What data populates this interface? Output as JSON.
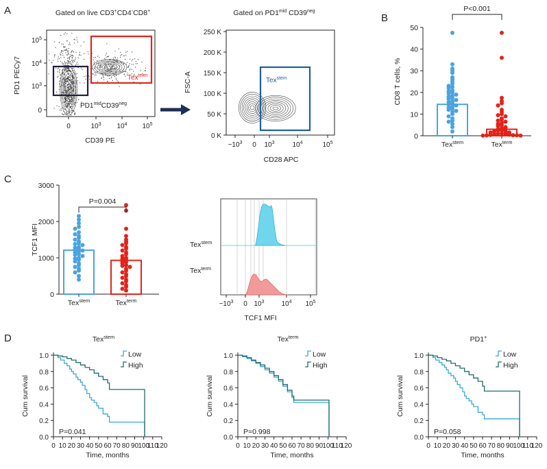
{
  "panel_letters": {
    "a": "A",
    "b": "B",
    "c": "C",
    "d": "D"
  },
  "colors": {
    "blue": "#4aa3df",
    "red": "#e2231a",
    "navy": "#1d2f54",
    "dark_box": "#231a3d",
    "histo_blue": "#6fd6ee",
    "histo_red": "#f19a9a",
    "km_low": "#38a7d6",
    "km_high": "#1f6b6b",
    "gate_blue": "#1f5fa0"
  },
  "chart_data": [
    {
      "id": "A1",
      "type": "scatter",
      "title_parts": [
        "Gated on live CD3",
        "+",
        "CD4",
        "-",
        "CD8",
        "+"
      ],
      "xlabel": "CD39 PE",
      "ylabel": "PD1 PECy7",
      "x_ticks": [
        {
          "label": "0",
          "sup": ""
        },
        {
          "label": "10",
          "sup": "3"
        },
        {
          "label": "10",
          "sup": "4"
        },
        {
          "label": "10",
          "sup": "5"
        }
      ],
      "y_ticks": [
        {
          "label": "0",
          "sup": ""
        },
        {
          "label": "10",
          "sup": "3"
        },
        {
          "label": "10",
          "sup": "4"
        },
        {
          "label": "10",
          "sup": "5"
        }
      ],
      "gate_tex_term_label": {
        "base": "Tex",
        "sup": "term"
      },
      "gate_pd1mid_label": {
        "p1": "PD1",
        "s1": "mid",
        "p2": "CD39",
        "s2": "neg"
      }
    },
    {
      "id": "A2",
      "type": "scatter",
      "title_parts": [
        "Gated on PD1",
        "mid",
        " CD39",
        "neg"
      ],
      "xlabel": "CD28 APC",
      "ylabel": "FSC-A",
      "y_ticks": [
        "0 K",
        "50 K",
        "100 K",
        "150 K",
        "200 K",
        "250 K"
      ],
      "x_ticks": [
        {
          "label": "−10",
          "sup": "3"
        },
        {
          "label": "0",
          "sup": ""
        },
        {
          "label": "10",
          "sup": "3"
        },
        {
          "label": "10",
          "sup": "4"
        },
        {
          "label": "10",
          "sup": "5"
        }
      ],
      "gate_label": {
        "base": "Tex",
        "sup": "stem"
      }
    },
    {
      "id": "B",
      "type": "bar",
      "ylabel": "CD8 T cells, %",
      "ylim": [
        0,
        50
      ],
      "y_ticks": [
        0,
        10,
        20,
        30,
        40,
        50
      ],
      "categories": [
        {
          "base": "Tex",
          "sup": "stem"
        },
        {
          "base": "Tex",
          "sup": "term"
        }
      ],
      "means": [
        14.5,
        3.0
      ],
      "significance": "P<0.001",
      "points": [
        [
          47.5,
          33,
          31,
          30,
          29,
          27,
          26,
          25,
          24,
          23,
          22.5,
          22,
          21,
          20.5,
          20,
          19.5,
          19,
          18.5,
          18,
          17.5,
          17,
          16.5,
          16,
          15.5,
          15,
          14.5,
          14,
          13.5,
          13,
          12.5,
          12,
          11.5,
          11,
          10,
          9,
          8,
          7,
          6.5,
          5.5,
          4,
          2
        ],
        [
          47.5,
          36,
          17.5,
          16,
          15,
          14,
          12,
          11,
          10,
          9.5,
          9,
          8,
          7.5,
          7,
          6.5,
          6,
          5.5,
          5,
          4.5,
          4,
          3.5,
          3,
          3,
          2.5,
          2.5,
          2,
          2,
          1.5,
          1.5,
          1,
          1,
          0.8,
          0.6,
          0.5,
          0.4,
          0.3,
          0.2,
          0.2,
          0.1,
          0.1
        ]
      ]
    },
    {
      "id": "C1",
      "type": "bar",
      "ylabel": "TCF1 MFI",
      "ylim": [
        0,
        3000
      ],
      "y_ticks": [
        0,
        1000,
        2000,
        3000
      ],
      "categories": [
        {
          "base": "Tex",
          "sup": "stem"
        },
        {
          "base": "Tex",
          "sup": "term"
        }
      ],
      "means": [
        1210,
        930
      ],
      "significance": "P=0.004",
      "points": [
        [
          2150,
          2050,
          1950,
          1850,
          1800,
          1700,
          1650,
          1600,
          1550,
          1500,
          1450,
          1400,
          1380,
          1350,
          1300,
          1280,
          1250,
          1220,
          1200,
          1180,
          1150,
          1100,
          1080,
          1050,
          1000,
          980,
          950,
          900,
          850,
          800,
          750,
          700,
          650,
          600,
          500,
          400
        ],
        [
          2450,
          2300,
          1800,
          1600,
          1500,
          1450,
          1400,
          1350,
          1300,
          1250,
          1200,
          1150,
          1100,
          1050,
          1000,
          980,
          950,
          900,
          880,
          850,
          800,
          780,
          750,
          700,
          650,
          600,
          550,
          500,
          450,
          400,
          350,
          300,
          250,
          200,
          150,
          100
        ]
      ]
    },
    {
      "id": "C2",
      "type": "area",
      "xlabel": "TCF1 MFI",
      "x_ticks": [
        {
          "label": "−10",
          "sup": "3"
        },
        {
          "label": "0",
          "sup": ""
        },
        {
          "label": "10",
          "sup": "3"
        },
        {
          "label": "10",
          "sup": "4"
        },
        {
          "label": "10",
          "sup": "5"
        }
      ],
      "series": [
        {
          "name": {
            "base": "Tex",
            "sup": "stem"
          }
        },
        {
          "name": {
            "base": "Tex",
            "sup": "term"
          }
        }
      ]
    },
    {
      "id": "D1",
      "type": "line",
      "title": {
        "base": "Tex",
        "sup": "stem"
      },
      "xlabel": "Time, months",
      "ylabel": "Cum survival",
      "xlim": [
        0,
        120
      ],
      "ylim": [
        0,
        1
      ],
      "x_ticks": [
        0,
        10,
        20,
        30,
        40,
        50,
        60,
        70,
        80,
        90,
        100,
        110,
        120
      ],
      "y_ticks": [
        "0.0",
        "0.2",
        "0.4",
        "0.6",
        "0.8",
        "1.0"
      ],
      "p_value": "P=0.041",
      "legend": [
        "Low",
        "High"
      ],
      "series": [
        {
          "name": "Low",
          "t": [
            0,
            5,
            8,
            12,
            15,
            18,
            20,
            22,
            25,
            27,
            30,
            32,
            35,
            37,
            40,
            42,
            45,
            48,
            50,
            55,
            60,
            62,
            100,
            101
          ],
          "s": [
            1.0,
            0.97,
            0.94,
            0.9,
            0.87,
            0.83,
            0.8,
            0.77,
            0.73,
            0.7,
            0.67,
            0.63,
            0.58,
            0.53,
            0.48,
            0.45,
            0.42,
            0.38,
            0.35,
            0.28,
            0.25,
            0.18,
            0.18,
            0.0
          ]
        },
        {
          "name": "High",
          "t": [
            0,
            5,
            10,
            15,
            20,
            25,
            30,
            35,
            40,
            45,
            50,
            55,
            60,
            62,
            100,
            101
          ],
          "s": [
            1.0,
            0.99,
            0.98,
            0.96,
            0.94,
            0.91,
            0.88,
            0.85,
            0.82,
            0.78,
            0.74,
            0.7,
            0.66,
            0.58,
            0.58,
            0.0
          ]
        }
      ]
    },
    {
      "id": "D2",
      "type": "line",
      "title": {
        "base": "Tex",
        "sup": "term"
      },
      "xlabel": "Time, months",
      "ylabel": "Cum survival",
      "xlim": [
        0,
        120
      ],
      "ylim": [
        0,
        1
      ],
      "x_ticks": [
        0,
        10,
        20,
        30,
        40,
        50,
        60,
        70,
        80,
        90,
        100,
        110,
        120
      ],
      "y_ticks": [
        "0.0",
        "0.2",
        "0.4",
        "0.6",
        "0.8",
        "1.0"
      ],
      "p_value": "P=0.998",
      "legend": [
        "Low",
        "High"
      ],
      "series": [
        {
          "name": "Low",
          "t": [
            0,
            5,
            10,
            15,
            20,
            25,
            30,
            35,
            40,
            45,
            50,
            55,
            60,
            62,
            100,
            101
          ],
          "s": [
            1.0,
            0.98,
            0.96,
            0.93,
            0.9,
            0.86,
            0.82,
            0.78,
            0.73,
            0.68,
            0.62,
            0.55,
            0.48,
            0.42,
            0.42,
            0.0
          ]
        },
        {
          "name": "High",
          "t": [
            0,
            5,
            10,
            15,
            20,
            25,
            30,
            35,
            40,
            45,
            50,
            55,
            60,
            62,
            100,
            101
          ],
          "s": [
            1.0,
            0.99,
            0.97,
            0.94,
            0.91,
            0.88,
            0.84,
            0.8,
            0.75,
            0.7,
            0.64,
            0.57,
            0.5,
            0.45,
            0.45,
            0.0
          ]
        }
      ]
    },
    {
      "id": "D3",
      "type": "line",
      "title": {
        "base": "PD1",
        "sup": "+"
      },
      "xlabel": "Time, months",
      "ylabel": "Cum survival",
      "xlim": [
        0,
        120
      ],
      "ylim": [
        0,
        1
      ],
      "x_ticks": [
        0,
        10,
        20,
        30,
        40,
        50,
        60,
        70,
        80,
        90,
        100,
        110,
        120
      ],
      "y_ticks": [
        "0.0",
        "0.2",
        "0.4",
        "0.6",
        "0.8",
        "1.0"
      ],
      "p_value": "P=0.058",
      "legend": [
        "Low",
        "High"
      ],
      "series": [
        {
          "name": "Low",
          "t": [
            0,
            5,
            8,
            12,
            15,
            18,
            20,
            22,
            25,
            28,
            30,
            32,
            35,
            38,
            40,
            42,
            45,
            48,
            50,
            55,
            60,
            62,
            100,
            101
          ],
          "s": [
            1.0,
            0.97,
            0.94,
            0.91,
            0.88,
            0.85,
            0.82,
            0.78,
            0.75,
            0.72,
            0.68,
            0.64,
            0.6,
            0.55,
            0.5,
            0.47,
            0.44,
            0.4,
            0.37,
            0.3,
            0.27,
            0.22,
            0.22,
            0.0
          ]
        },
        {
          "name": "High",
          "t": [
            0,
            5,
            10,
            15,
            20,
            25,
            30,
            35,
            40,
            45,
            50,
            55,
            60,
            62,
            100,
            101
          ],
          "s": [
            1.0,
            0.99,
            0.97,
            0.95,
            0.93,
            0.9,
            0.87,
            0.84,
            0.8,
            0.76,
            0.72,
            0.68,
            0.62,
            0.56,
            0.56,
            0.0
          ]
        }
      ]
    }
  ]
}
